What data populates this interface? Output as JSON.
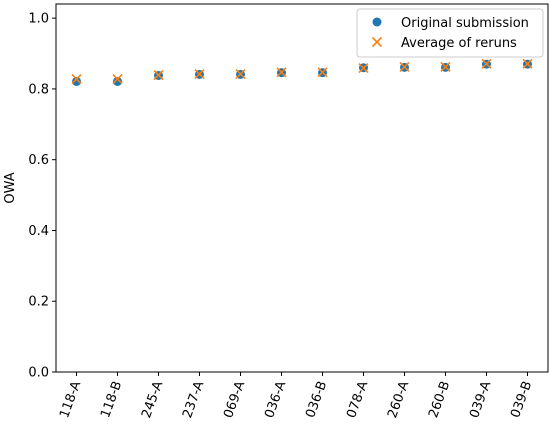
{
  "chart_data": {
    "type": "scatter",
    "title": "",
    "xlabel": "",
    "ylabel": "OWA",
    "categories": [
      "118-A",
      "118-B",
      "245-A",
      "237-A",
      "069-A",
      "036-A",
      "036-B",
      "078-A",
      "260-A",
      "260-B",
      "039-A",
      "039-B"
    ],
    "ylim": [
      0.0,
      1.04
    ],
    "yticks": [
      0.0,
      0.2,
      0.4,
      0.6,
      0.8,
      1.0
    ],
    "ytick_labels": [
      "0.0",
      "0.2",
      "0.4",
      "0.6",
      "0.8",
      "1.0"
    ],
    "grid": false,
    "legend_position": "top-right",
    "series": [
      {
        "name": "Original submission",
        "marker": "circle",
        "color": "#1f77b4",
        "values": [
          0.821,
          0.821,
          0.838,
          0.841,
          0.841,
          0.846,
          0.846,
          0.86,
          0.861,
          0.861,
          0.87,
          0.87
        ]
      },
      {
        "name": "Average of reruns",
        "marker": "x",
        "color": "#ff7f0e",
        "values": [
          0.828,
          0.828,
          0.839,
          0.842,
          0.842,
          0.847,
          0.847,
          0.859,
          0.862,
          0.862,
          0.871,
          0.871
        ]
      }
    ]
  }
}
